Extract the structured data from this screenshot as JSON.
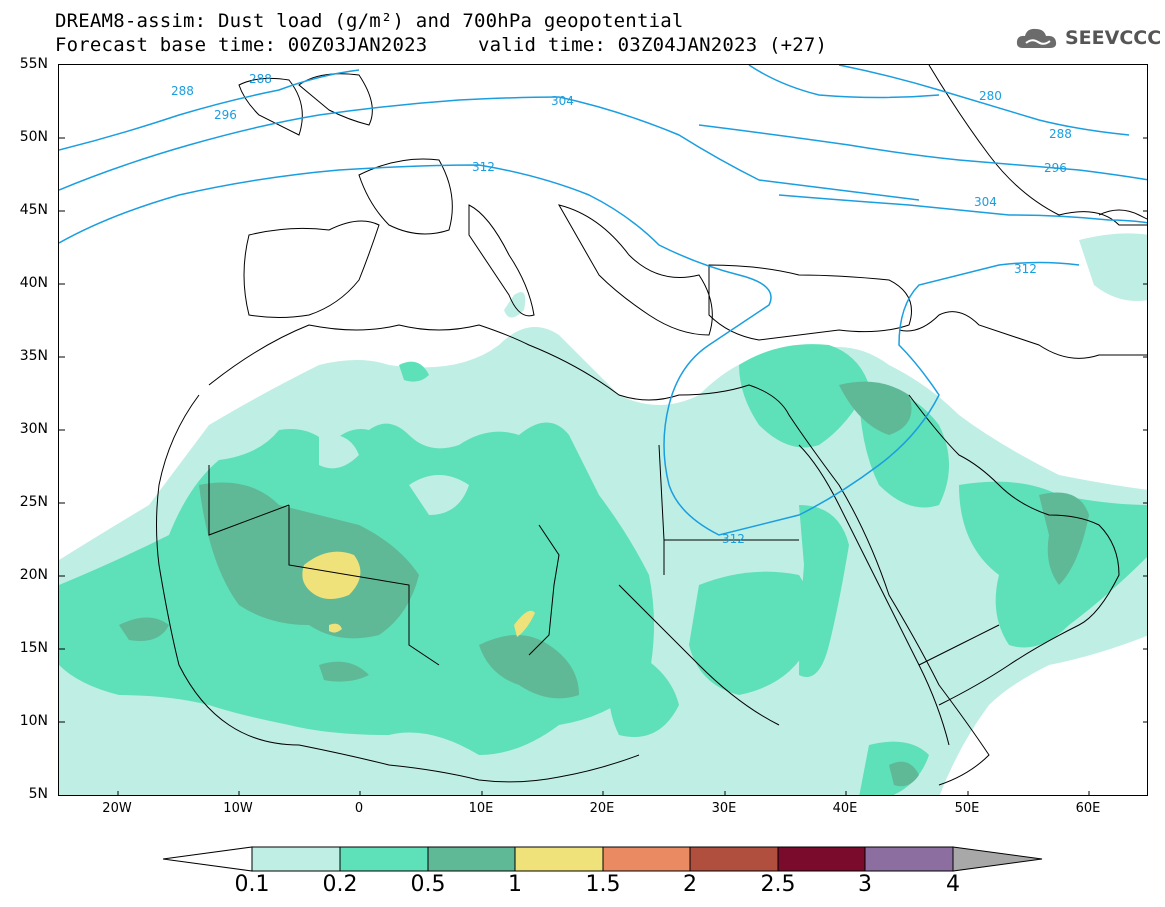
{
  "header": {
    "title_line1": "DREAM8-assim: Dust load (g/m²) and 700hPa geopotential",
    "title_line2a": "Forecast base time: 00Z03JAN2023",
    "title_line2b": "valid time: 03Z04JAN2023 (+27)",
    "logo_text": "SEEVCCC"
  },
  "axes": {
    "lat_labels": [
      "55N",
      "50N",
      "45N",
      "40N",
      "35N",
      "30N",
      "25N",
      "20N",
      "15N",
      "10N",
      "5N"
    ],
    "lon_labels": [
      "20W",
      "10W",
      "0",
      "10E",
      "20E",
      "30E",
      "40E",
      "50E",
      "60E"
    ]
  },
  "contour_labels": [
    "288",
    "288",
    "296",
    "304",
    "312",
    "280",
    "288",
    "296",
    "304",
    "312",
    "312"
  ],
  "colorbar": {
    "labels": [
      "0.1",
      "0.2",
      "0.5",
      "1",
      "1.5",
      "2",
      "2.5",
      "3",
      "4"
    ],
    "colors": [
      "#bfeee4",
      "#5ee0b8",
      "#5fb896",
      "#f0e27a",
      "#e98a62",
      "#b14f3e",
      "#7a0b2c",
      "#8c6fa0",
      "#a8a8a8"
    ]
  }
}
